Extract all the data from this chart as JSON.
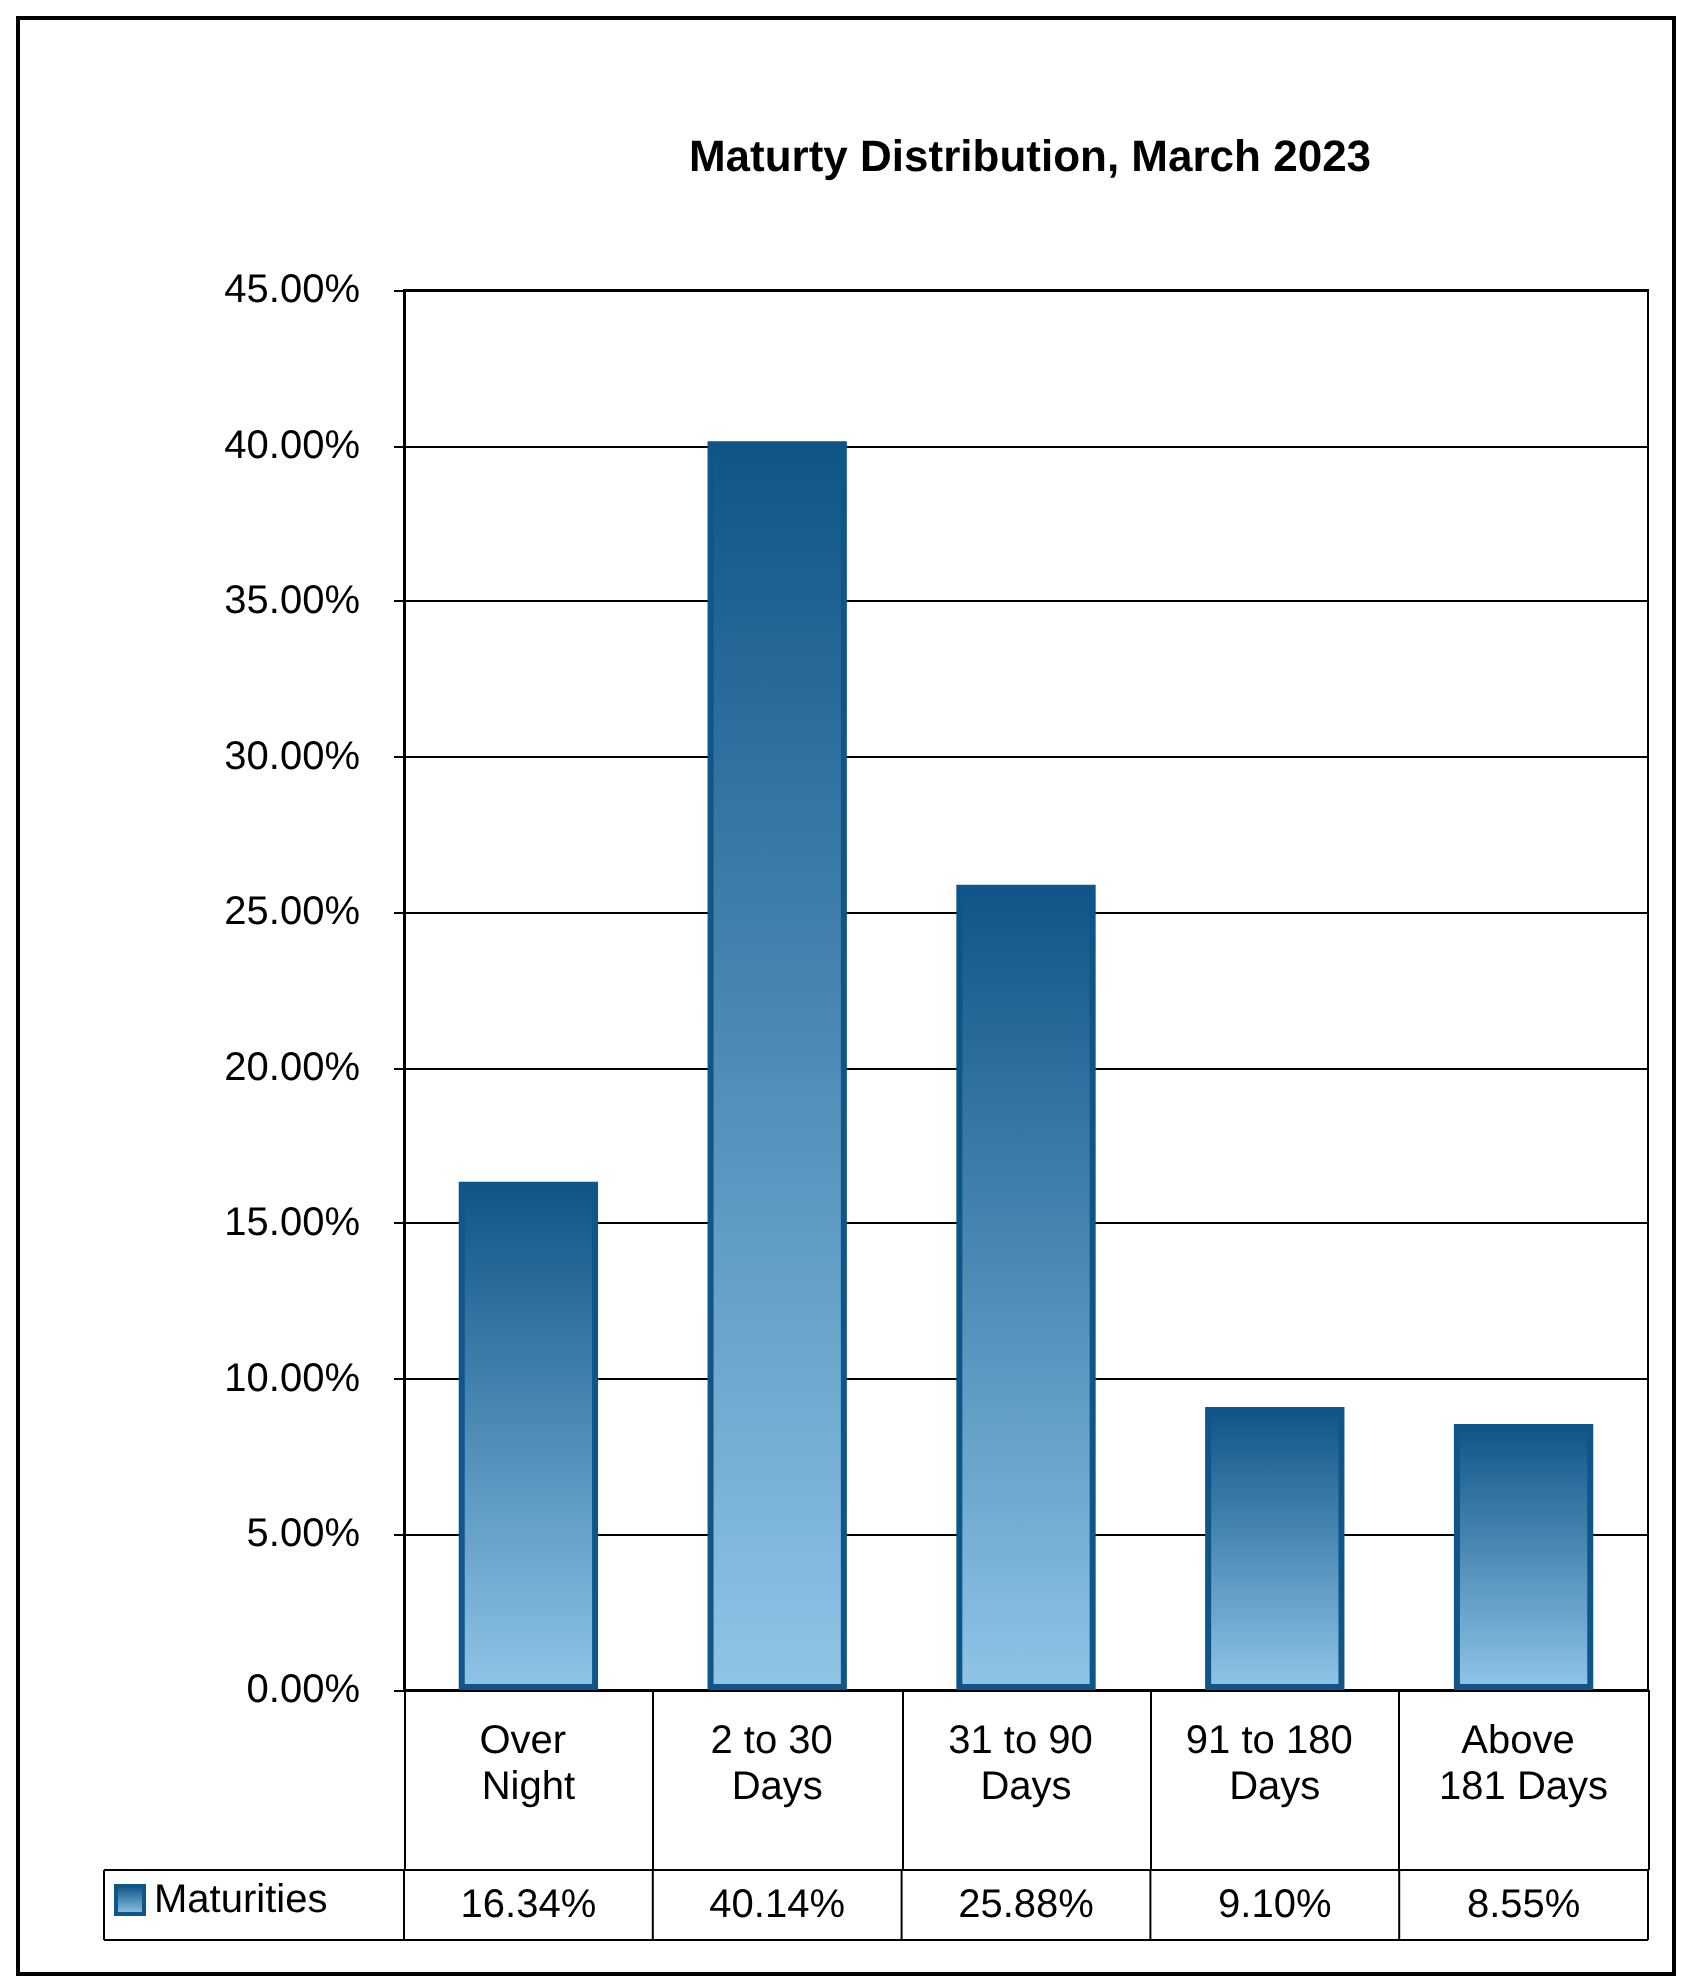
{
  "chart_data": {
    "type": "bar",
    "title": "Maturty Distribution, March 2023",
    "categories": [
      "Over Night",
      "2 to 30 Days",
      "31 to 90 Days",
      "91 to 180 Days",
      "Above 181 Days"
    ],
    "series": [
      {
        "name": "Maturities",
        "color": "#0f5588",
        "values": [
          16.34,
          40.14,
          25.88,
          9.1,
          8.55
        ],
        "value_labels": [
          "16.34%",
          "40.14%",
          "25.88%",
          "9.10%",
          "8.55%"
        ]
      }
    ],
    "ylim": [
      0,
      45
    ],
    "yticks": [
      {
        "value": 0,
        "label": "0.00%"
      },
      {
        "value": 5,
        "label": "5.00%"
      },
      {
        "value": 10,
        "label": "10.00%"
      },
      {
        "value": 15,
        "label": "15.00%"
      },
      {
        "value": 20,
        "label": "20.00%"
      },
      {
        "value": 25,
        "label": "25.00%"
      },
      {
        "value": 30,
        "label": "30.00%"
      },
      {
        "value": 35,
        "label": "35.00%"
      },
      {
        "value": 40,
        "label": "40.00%"
      },
      {
        "value": 45,
        "label": "45.00%"
      }
    ],
    "grid": "y",
    "legend": "bottom left"
  }
}
